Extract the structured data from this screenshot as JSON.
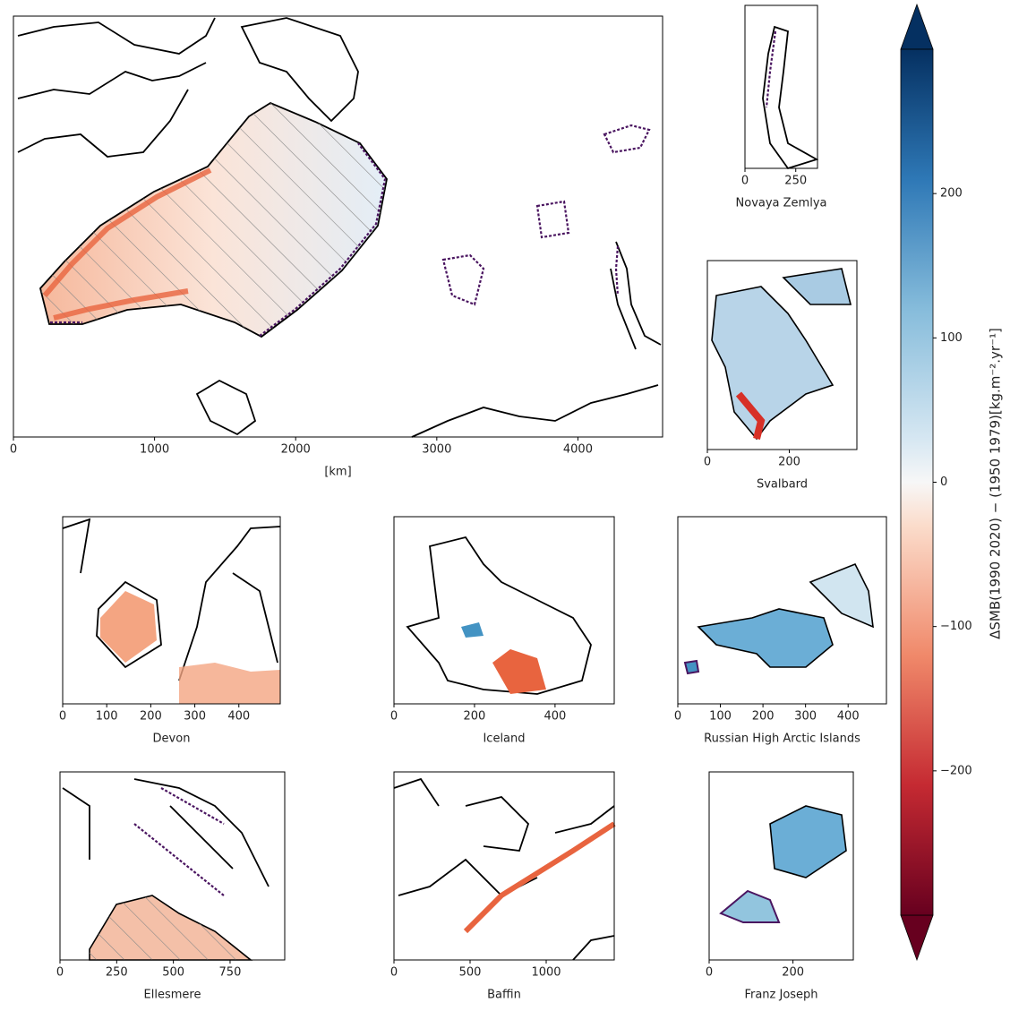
{
  "panels": [
    {
      "xlabel": "[km]",
      "xlim": [
        0,
        4600
      ],
      "xticks": [
        0,
        1000,
        2000,
        3000,
        4000
      ]
    },
    {
      "xlabel": "Novaya Zemlya",
      "xlim": [
        0,
        357
      ],
      "xticks": [
        0,
        250
      ]
    },
    {
      "xlabel": "Svalbard",
      "xlim": [
        0,
        365
      ],
      "xticks": [
        0,
        200
      ]
    },
    {
      "xlabel": "Devon",
      "xlim": [
        0,
        494
      ],
      "xticks": [
        0,
        100,
        200,
        300,
        400
      ]
    },
    {
      "xlabel": "Iceland",
      "xlim": [
        0,
        547
      ],
      "xticks": [
        0,
        200,
        400
      ]
    },
    {
      "xlabel": "Russian High Arctic Islands",
      "xlim": [
        0,
        490
      ],
      "xticks": [
        0,
        100,
        200,
        300,
        400
      ]
    },
    {
      "xlabel": "Ellesmere",
      "xlim": [
        0,
        991
      ],
      "xticks": [
        0,
        250,
        500,
        750
      ]
    },
    {
      "xlabel": "Baffin",
      "xlim": [
        0,
        1447
      ],
      "xticks": [
        0,
        500,
        1000
      ]
    },
    {
      "xlabel": "Franz Joseph",
      "xlim": [
        0,
        344
      ],
      "xticks": [
        0,
        200
      ]
    }
  ],
  "colorbar": {
    "label": "ΔSMB(1990 2020) − (1950 1979)[kg.m⁻².yr⁻¹]",
    "lim": [
      -300,
      300
    ],
    "ticks": [
      {
        "value": -200,
        "label": "−200"
      },
      {
        "value": -100,
        "label": "−100"
      },
      0,
      100,
      200
    ]
  }
}
